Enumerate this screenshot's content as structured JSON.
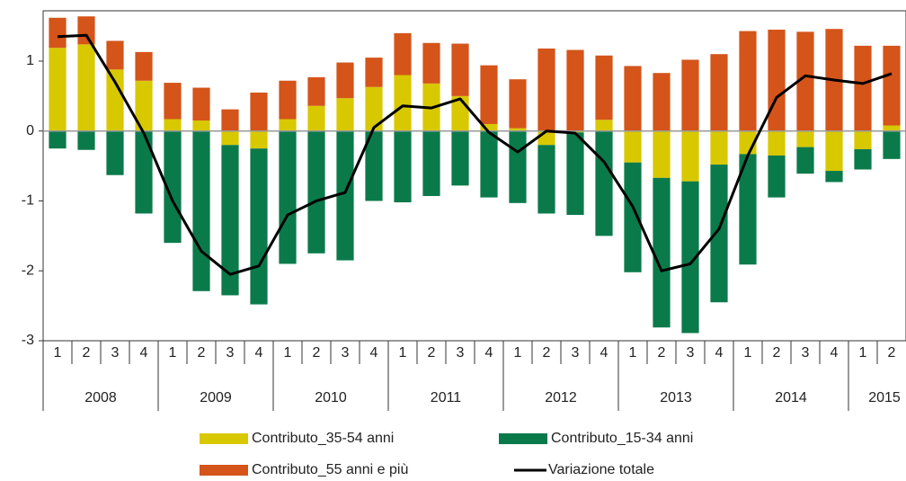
{
  "chart_data": {
    "type": "stacked_bar_line",
    "year_groups": [
      {
        "label": "2008",
        "quarters": [
          "1",
          "2",
          "3",
          "4"
        ]
      },
      {
        "label": "2009",
        "quarters": [
          "1",
          "2",
          "3",
          "4"
        ]
      },
      {
        "label": "2010",
        "quarters": [
          "1",
          "2",
          "3",
          "4"
        ]
      },
      {
        "label": "2011",
        "quarters": [
          "1",
          "2",
          "3",
          "4"
        ]
      },
      {
        "label": "2012",
        "quarters": [
          "1",
          "2",
          "3",
          "4"
        ]
      },
      {
        "label": "2013",
        "quarters": [
          "1",
          "2",
          "3",
          "4"
        ]
      },
      {
        "label": "2014",
        "quarters": [
          "1",
          "2",
          "3",
          "4"
        ]
      },
      {
        "label": "2015",
        "quarters": [
          "1",
          "2"
        ]
      }
    ],
    "series": [
      {
        "name": "Contributo_35-54 anni",
        "kind": "bar",
        "color": "#d8c800",
        "values": [
          1.19,
          1.24,
          0.88,
          0.72,
          0.17,
          0.15,
          -0.2,
          -0.25,
          0.17,
          0.36,
          0.47,
          0.63,
          0.8,
          0.68,
          0.5,
          0.1,
          0.04,
          -0.2,
          -0.02,
          0.16,
          -0.45,
          -0.67,
          -0.72,
          -0.48,
          -0.33,
          -0.35,
          -0.23,
          -0.57,
          -0.26,
          0.08
        ]
      },
      {
        "name": "Contributo_15-34 anni",
        "kind": "bar",
        "color": "#0a7a4a",
        "values": [
          -0.25,
          -0.27,
          -0.63,
          -1.18,
          -1.6,
          -2.29,
          -2.15,
          -2.23,
          -1.9,
          -1.75,
          -1.85,
          -1.0,
          -1.02,
          -0.93,
          -0.78,
          -0.95,
          -1.03,
          -0.98,
          -1.18,
          -1.5,
          -1.57,
          -2.14,
          -2.17,
          -1.97,
          -1.58,
          -0.6,
          -0.38,
          -0.16,
          -0.29,
          -0.4
        ]
      },
      {
        "name": "Contributo_55 anni e più",
        "kind": "bar",
        "color": "#d4541a",
        "values": [
          0.43,
          0.4,
          0.41,
          0.41,
          0.52,
          0.47,
          0.31,
          0.55,
          0.55,
          0.41,
          0.51,
          0.42,
          0.6,
          0.58,
          0.75,
          0.84,
          0.7,
          1.18,
          1.16,
          0.92,
          0.93,
          0.83,
          1.02,
          1.1,
          1.43,
          1.45,
          1.42,
          1.46,
          1.22,
          1.14
        ]
      },
      {
        "name": "Variazione totale",
        "kind": "line",
        "color": "#000000",
        "values": [
          1.35,
          1.37,
          0.7,
          -0.03,
          -1.0,
          -1.72,
          -2.05,
          -1.93,
          -1.2,
          -1.0,
          -0.88,
          0.05,
          0.36,
          0.33,
          0.46,
          -0.02,
          -0.3,
          0.0,
          -0.03,
          -0.44,
          -1.08,
          -2.0,
          -1.9,
          -1.4,
          -0.35,
          0.48,
          0.79,
          0.73,
          0.68,
          0.82
        ]
      }
    ],
    "ylim": [
      -3,
      1.72
    ],
    "yticks": [
      -3,
      -2,
      -1,
      0,
      1
    ]
  }
}
